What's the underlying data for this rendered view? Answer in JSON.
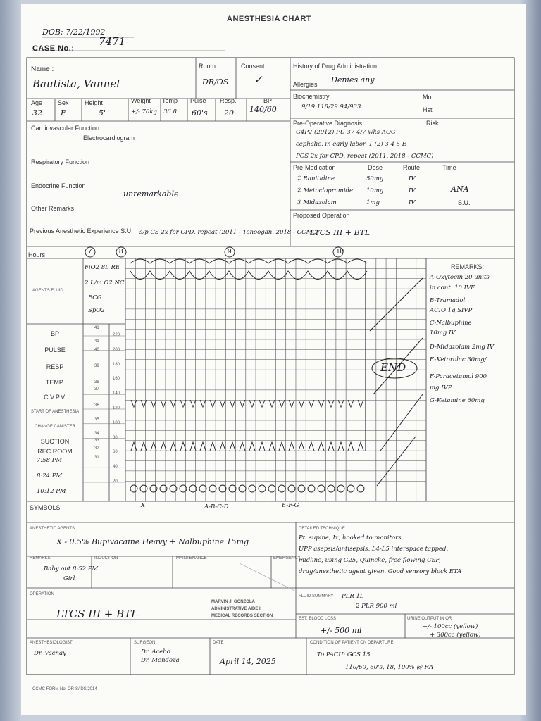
{
  "header": {
    "title": "ANESTHESIA CHART",
    "dob": "DOB: 7/22/1992",
    "case_label": "CASE No.:",
    "case_no": "7471"
  },
  "patient": {
    "name_label": "Name :",
    "name": "Bautista, Vannel",
    "room_label": "Room",
    "room": "DR/OS",
    "consent_label": "Consent",
    "consent": "✓",
    "age_label": "Age",
    "age": "32",
    "sex_label": "Sex",
    "sex": "F",
    "height_label": "Height",
    "height": "5'",
    "weight_label": "Weight",
    "weight": "+/- 70kg",
    "temp_label": "Temp",
    "temp": "36.8",
    "pulse_label": "Pulse",
    "pulse": "60's",
    "resp_label": "Resp.",
    "resp": "20",
    "bp_label": "BP",
    "bp": "140/60"
  },
  "history": {
    "drug_label": "History of Drug Administration",
    "allergies_label": "Allergies",
    "allergies": "Denies any",
    "biochem_label": "Biochemistry",
    "biochem": "9/19  118/29  94/933",
    "mo_label": "Mo.",
    "hst_label": "Hst"
  },
  "diagnosis": {
    "label": "Pre-Operative Diagnosis",
    "risk_label": "Risk",
    "lines": [
      "G4P2 (2012) PU 37 4/7 wks AOG",
      "cephalic, in early labor, 1 (2) 3 4 5 E",
      "PCS 2x for CPD, repeat (2011, 2018 - CCMC)"
    ]
  },
  "premed": {
    "label": "Pre-Medication",
    "dose_label": "Dose",
    "route_label": "Route",
    "time_label": "Time",
    "rows": [
      [
        "① Ranitidine",
        "50mg",
        "IV"
      ],
      [
        "② Metoclopramide",
        "10mg",
        "IV"
      ],
      [
        "③ Midazolam",
        "1mg",
        "IV"
      ]
    ],
    "time": "ANA",
    "su": "S.U."
  },
  "proposed": {
    "label": "Proposed Operation",
    "value": "LTCS III + BTL"
  },
  "functions": {
    "cardio": "Cardiovascular Function",
    "ecg": "Electrocardiogram",
    "resp": "Respiratory Function",
    "endo": "Endocrine Function",
    "other": "Other Remarks",
    "value": "unremarkable",
    "prev_label": "Previous Anesthetic Experience S.U.",
    "prev": "s/p CS 2x for CPD, repeat (2011 - Tonoogan, 2018 - CCMC)"
  },
  "chart": {
    "hours_label": "Hours",
    "hours": [
      "7",
      "8",
      "9",
      "10"
    ],
    "agents_label": "AGENTS FLUID",
    "row_labels": [
      "BP",
      "PULSE",
      "RESP",
      "TEMP.",
      "C.V.P.V.",
      "START OF ANESTHESIA",
      "CHANGE CANISTER",
      "SUCTION",
      "REC ROOM"
    ],
    "scale_left": [
      "41",
      "41",
      "40",
      "39",
      "38",
      "37",
      "36",
      "35",
      "34",
      "33",
      "32",
      "31"
    ],
    "scale_right": [
      "220",
      "200",
      "180",
      "160",
      "140",
      "120",
      "100",
      "80",
      "60",
      "40",
      "20"
    ],
    "rec_times": [
      "7:58 PM",
      "8:24 PM",
      "10:12 PM"
    ],
    "notes": [
      "FiO2 8L RE",
      "2 L/m O2 NC",
      "ECG",
      "SpO2"
    ],
    "end": "END"
  },
  "remarks": {
    "label": "REMARKS:",
    "lines": [
      "A-Oxytocin 20 units",
      "in cont. 10 IVF",
      "B-Tramadol",
      "ACIO 1g SIVP",
      "C-Nalbuphine",
      "10mg IV",
      "D-Midazolam 2mg IV",
      "E-Ketorolac 30mg/",
      "F-Paracetamol 900",
      "mg IVP",
      "G-Ketamine 60mg"
    ]
  },
  "symbols": {
    "label": "SYMBOLS",
    "marks": [
      "X",
      "A-B-C-D",
      "E-F-G"
    ]
  },
  "bottom": {
    "agents_label": "ANESTHETIC AGENTS",
    "agents": "X - 0.5% Bupivacaine Heavy + Nalbuphine 15mg",
    "technique_label": "DETAILED TECHNIQUE",
    "technique": [
      "Pt. supine, Ix, hooked to monitors,",
      "UPP asepsis/antisepsis, L4-L5 interspace tapped,",
      "midline, using G25, Quincke, free flowing CSF,",
      "drug/anesthetic agent given. Good sensory block ETA"
    ],
    "remarks_label": "REMARKS",
    "induction_label": "INDUCTION",
    "maintenance_label": "MAINTENANCE",
    "emergence_label": "EMERGENCY",
    "remarks": [
      "Baby out 8:52 PM",
      "Girl"
    ],
    "operation_label": "OPERATION",
    "operation": "LTCS III + BTL",
    "fluid_label": "FLUID SUMMARY",
    "fluid": [
      "PLR 1L",
      "2 PLR 900 ml"
    ],
    "ebl_label": "EST. BLOOD LOSS",
    "ebl": "+/- 500 ml",
    "urine_label": "URINE OUTPUT IN OR",
    "urine": [
      "+/- 100cc (yellow)",
      "+ 300cc (yellow)"
    ],
    "anesthesiologist_label": "ANESTHESIOLOGIST",
    "anesthesiologist": "Dr. Vacnay",
    "surgeon_label": "SURGEON",
    "surgeon": [
      "Dr. Acebo",
      "Dr. Mendoza"
    ],
    "date_label": "DATE",
    "date": "April 14, 2025",
    "condition_label": "CONDITION OF PATIENT ON DEPARTURE",
    "condition": [
      "To PACU: GCS 15",
      "110/60, 60's, 18, 100% @ RA"
    ]
  },
  "stamp": [
    "MARVIN J. GONZOLA",
    "ADMINISTRATIVE AIDE I",
    "MEDICAL RECORDS SECTION"
  ],
  "footer": "CCMC FORM No. OR-S/IDS/2014"
}
